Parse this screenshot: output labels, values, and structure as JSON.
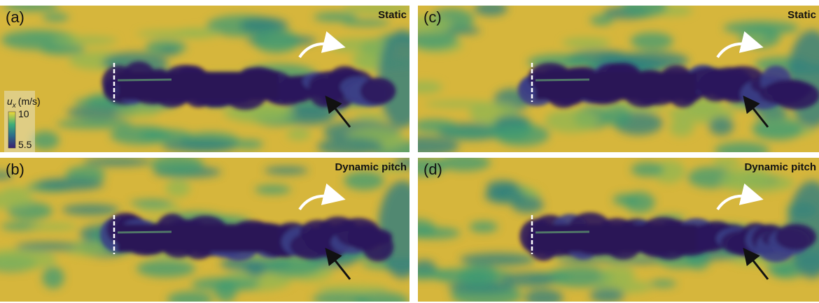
{
  "panels": [
    {
      "label": "(a)",
      "title": "Static"
    },
    {
      "label": "(b)",
      "title": "Dynamic pitch"
    },
    {
      "label": "(c)",
      "title": "Static"
    },
    {
      "label": "(d)",
      "title": "Dynamic pitch"
    }
  ],
  "colorbar": {
    "symbol": "u",
    "subscript": "x",
    "unit": "(m/s)",
    "ticks": [
      "10",
      "5.5"
    ]
  }
}
